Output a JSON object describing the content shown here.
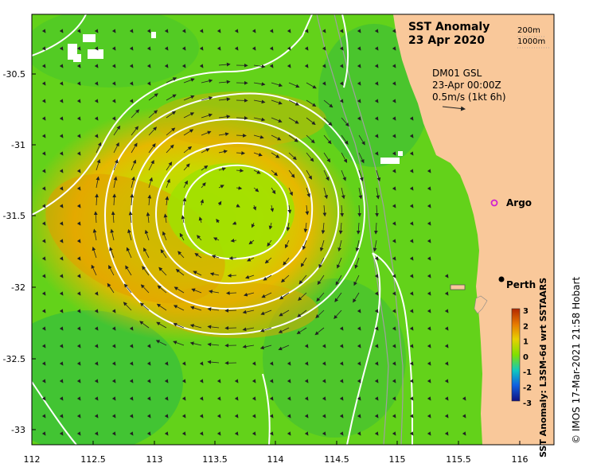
{
  "title": {
    "line1": "SST Anomaly",
    "line2": "23 Apr 2020"
  },
  "depth_legend": {
    "items": [
      "200m",
      "1000m"
    ]
  },
  "current_info": {
    "line1": "DM01 GSL",
    "line2": "23-Apr 00:00Z",
    "line3": "0.5m/s (1kt 6h)"
  },
  "places": {
    "argo": "Argo",
    "perth": "Perth"
  },
  "colorbar": {
    "label": "SST Anomaly: L3SM-6d wrt SSTAARS",
    "ticks": [
      "3",
      "2",
      "1",
      "0",
      "-1",
      "-2",
      "-3"
    ]
  },
  "credit": "© IMOS 17-Mar-2021 21:58 Hobart",
  "axes": {
    "x_ticks": [
      "112",
      "112.5",
      "113",
      "113.5",
      "114",
      "114.5",
      "115",
      "115.5",
      "116"
    ],
    "y_ticks": [
      "-30.5",
      "-31",
      "-31.5",
      "-32",
      "-32.5",
      "-33"
    ]
  },
  "colors": {
    "land": "#f9c89a",
    "warm": "#e8a200",
    "neutral": "#9be000",
    "cool": "#2fb84a",
    "contour": "#ffffff",
    "argo": "#d020d0"
  }
}
